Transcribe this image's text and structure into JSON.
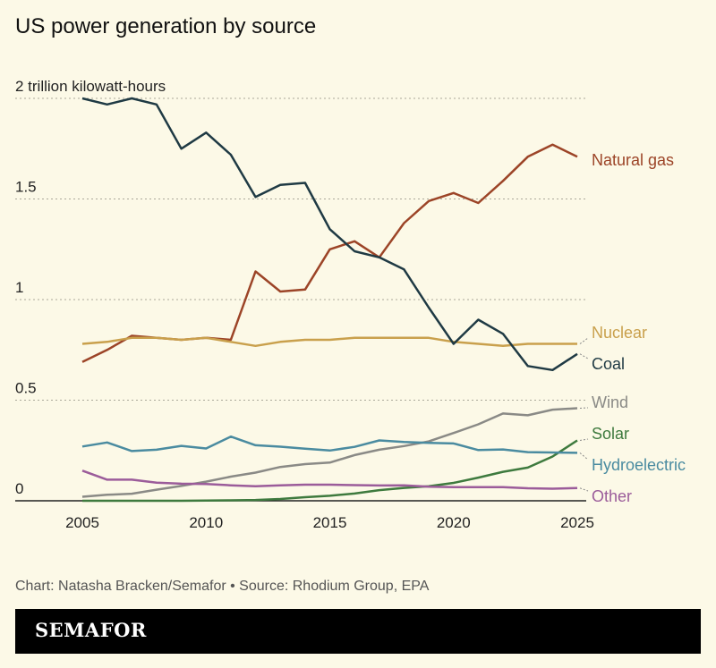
{
  "chart_data": {
    "type": "line",
    "title": "US power generation by source",
    "ylabel": "trillion kilowatt-hours",
    "y_ticks": [
      {
        "value": 0,
        "label": "0"
      },
      {
        "value": 0.5,
        "label": "0.5"
      },
      {
        "value": 1,
        "label": "1"
      },
      {
        "value": 1.5,
        "label": "1.5"
      },
      {
        "value": 2,
        "label": "2 trillion kilowatt-hours"
      }
    ],
    "x_ticks": [
      2005,
      2010,
      2015,
      2020,
      2025
    ],
    "xlim": [
      2005,
      2025
    ],
    "ylim": [
      0,
      2
    ],
    "grid": "horizontal dotted",
    "legend": "direct labels at right end",
    "x": [
      2005,
      2006,
      2007,
      2008,
      2009,
      2010,
      2011,
      2012,
      2013,
      2014,
      2015,
      2016,
      2017,
      2018,
      2019,
      2020,
      2021,
      2022,
      2023,
      2024,
      2025
    ],
    "series": [
      {
        "name": "Natural gas",
        "color": "#9c4427",
        "values": [
          0.69,
          0.75,
          0.82,
          0.81,
          0.8,
          0.81,
          0.8,
          1.14,
          1.04,
          1.05,
          1.25,
          1.29,
          1.21,
          1.38,
          1.49,
          1.53,
          1.48,
          1.59,
          1.71,
          1.77,
          1.71
        ]
      },
      {
        "name": "Nuclear",
        "color": "#c9a04c",
        "values": [
          0.78,
          0.79,
          0.81,
          0.81,
          0.8,
          0.81,
          0.79,
          0.77,
          0.79,
          0.8,
          0.8,
          0.81,
          0.81,
          0.81,
          0.81,
          0.79,
          0.78,
          0.77,
          0.78,
          0.78,
          0.78
        ]
      },
      {
        "name": "Coal",
        "color": "#1f3a44",
        "values": [
          2.0,
          1.97,
          2.0,
          1.97,
          1.75,
          1.83,
          1.72,
          1.51,
          1.57,
          1.58,
          1.35,
          1.24,
          1.21,
          1.15,
          0.96,
          0.78,
          0.9,
          0.83,
          0.67,
          0.65,
          0.73
        ]
      },
      {
        "name": "Wind",
        "color": "#8a8a86",
        "values": [
          0.02,
          0.03,
          0.035,
          0.055,
          0.074,
          0.095,
          0.12,
          0.14,
          0.168,
          0.182,
          0.19,
          0.227,
          0.254,
          0.272,
          0.295,
          0.337,
          0.38,
          0.434,
          0.425,
          0.453,
          0.46
        ]
      },
      {
        "name": "Solar",
        "color": "#3e7a3e",
        "values": [
          0,
          0,
          0,
          0,
          0,
          0.001,
          0.002,
          0.004,
          0.009,
          0.018,
          0.025,
          0.036,
          0.053,
          0.064,
          0.072,
          0.089,
          0.115,
          0.144,
          0.165,
          0.22,
          0.3
        ]
      },
      {
        "name": "Hydroelectric",
        "color": "#4a8ba0",
        "values": [
          0.27,
          0.29,
          0.247,
          0.254,
          0.273,
          0.26,
          0.319,
          0.276,
          0.269,
          0.259,
          0.25,
          0.268,
          0.3,
          0.292,
          0.288,
          0.285,
          0.252,
          0.255,
          0.242,
          0.24,
          0.238
        ]
      },
      {
        "name": "Other",
        "color": "#9b5c9a",
        "values": [
          0.15,
          0.105,
          0.105,
          0.09,
          0.085,
          0.083,
          0.077,
          0.072,
          0.077,
          0.08,
          0.08,
          0.078,
          0.076,
          0.077,
          0.07,
          0.068,
          0.068,
          0.068,
          0.062,
          0.06,
          0.063
        ]
      }
    ]
  },
  "credit": "Chart: Natasha Bracken/Semafor • Source: Rhodium Group, EPA",
  "brand": "SEMAFOR"
}
